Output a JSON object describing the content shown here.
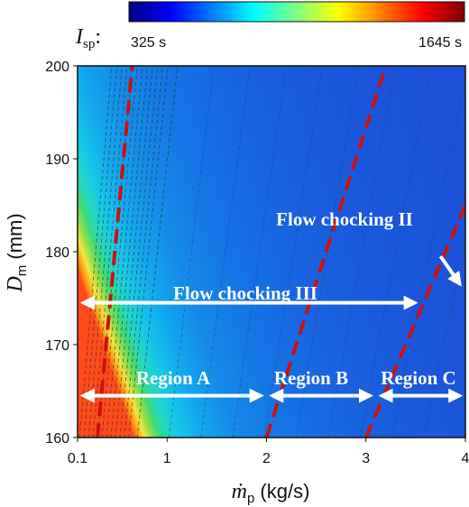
{
  "chart_data": {
    "type": "heatmap",
    "xlabel": "ṁp (kg/s)",
    "xlabel_parts": {
      "symbol": "ṁ",
      "sub": "p",
      "unit": " (kg/s)"
    },
    "ylabel": "Dm (mm)",
    "ylabel_parts": {
      "symbol": "D",
      "sub": "m",
      "unit": " (mm)"
    },
    "xlim": [
      0.1,
      4
    ],
    "ylim": [
      160,
      200
    ],
    "x_ticks": [
      {
        "value": 0.1,
        "label": "0.1"
      },
      {
        "value": 1,
        "label": "1"
      },
      {
        "value": 2,
        "label": "2"
      },
      {
        "value": 3,
        "label": "3"
      },
      {
        "value": 4,
        "label": "4"
      }
    ],
    "y_ticks": [
      {
        "value": 160,
        "label": "160"
      },
      {
        "value": 170,
        "label": "170"
      },
      {
        "value": 180,
        "label": "180"
      },
      {
        "value": 190,
        "label": "190"
      },
      {
        "value": 200,
        "label": "200"
      }
    ],
    "colorbar": {
      "label": "Isp:",
      "label_parts": {
        "symbol": "I",
        "sub": "sp",
        "colon": ":"
      },
      "min_label": "325 s",
      "max_label": "1645 s",
      "min": 325,
      "max": 1645,
      "colors": [
        "#000080",
        "#0000ff",
        "#0080ff",
        "#00ffff",
        "#80ff80",
        "#ffff00",
        "#ff8000",
        "#ff0000",
        "#800000"
      ]
    },
    "boundary_lines": [
      {
        "name": "boundary-1",
        "points": [
          [
            0.3,
            160
          ],
          [
            0.65,
            200
          ]
        ],
        "color": "#cc1111"
      },
      {
        "name": "boundary-2",
        "points": [
          [
            2.0,
            160
          ],
          [
            3.2,
            200
          ]
        ],
        "color": "#cc1111"
      },
      {
        "name": "boundary-3",
        "points": [
          [
            3.0,
            160
          ],
          [
            4.0,
            185
          ]
        ],
        "color": "#cc1111"
      }
    ],
    "annotations": [
      {
        "text": "Flow chocking III",
        "arrow": {
          "from": [
            0.1,
            174.5
          ],
          "to": [
            3.55,
            174.5
          ],
          "double": true
        }
      },
      {
        "text": "Region A",
        "arrow": {
          "from": [
            0.1,
            164.5
          ],
          "to": [
            2.0,
            164.5
          ],
          "double": true
        }
      },
      {
        "text": "Region B",
        "arrow": {
          "from": [
            2.0,
            164.5
          ],
          "to": [
            3.1,
            164.5
          ],
          "double": true
        }
      },
      {
        "text": "Region C",
        "arrow": {
          "from": [
            3.1,
            164.5
          ],
          "to": [
            4.0,
            164.5
          ],
          "double": true
        }
      },
      {
        "text": "Flow chocking II",
        "arrow": {
          "from": [
            3.75,
            179.5
          ],
          "to": [
            4.0,
            176.5
          ],
          "double": false
        }
      }
    ]
  }
}
